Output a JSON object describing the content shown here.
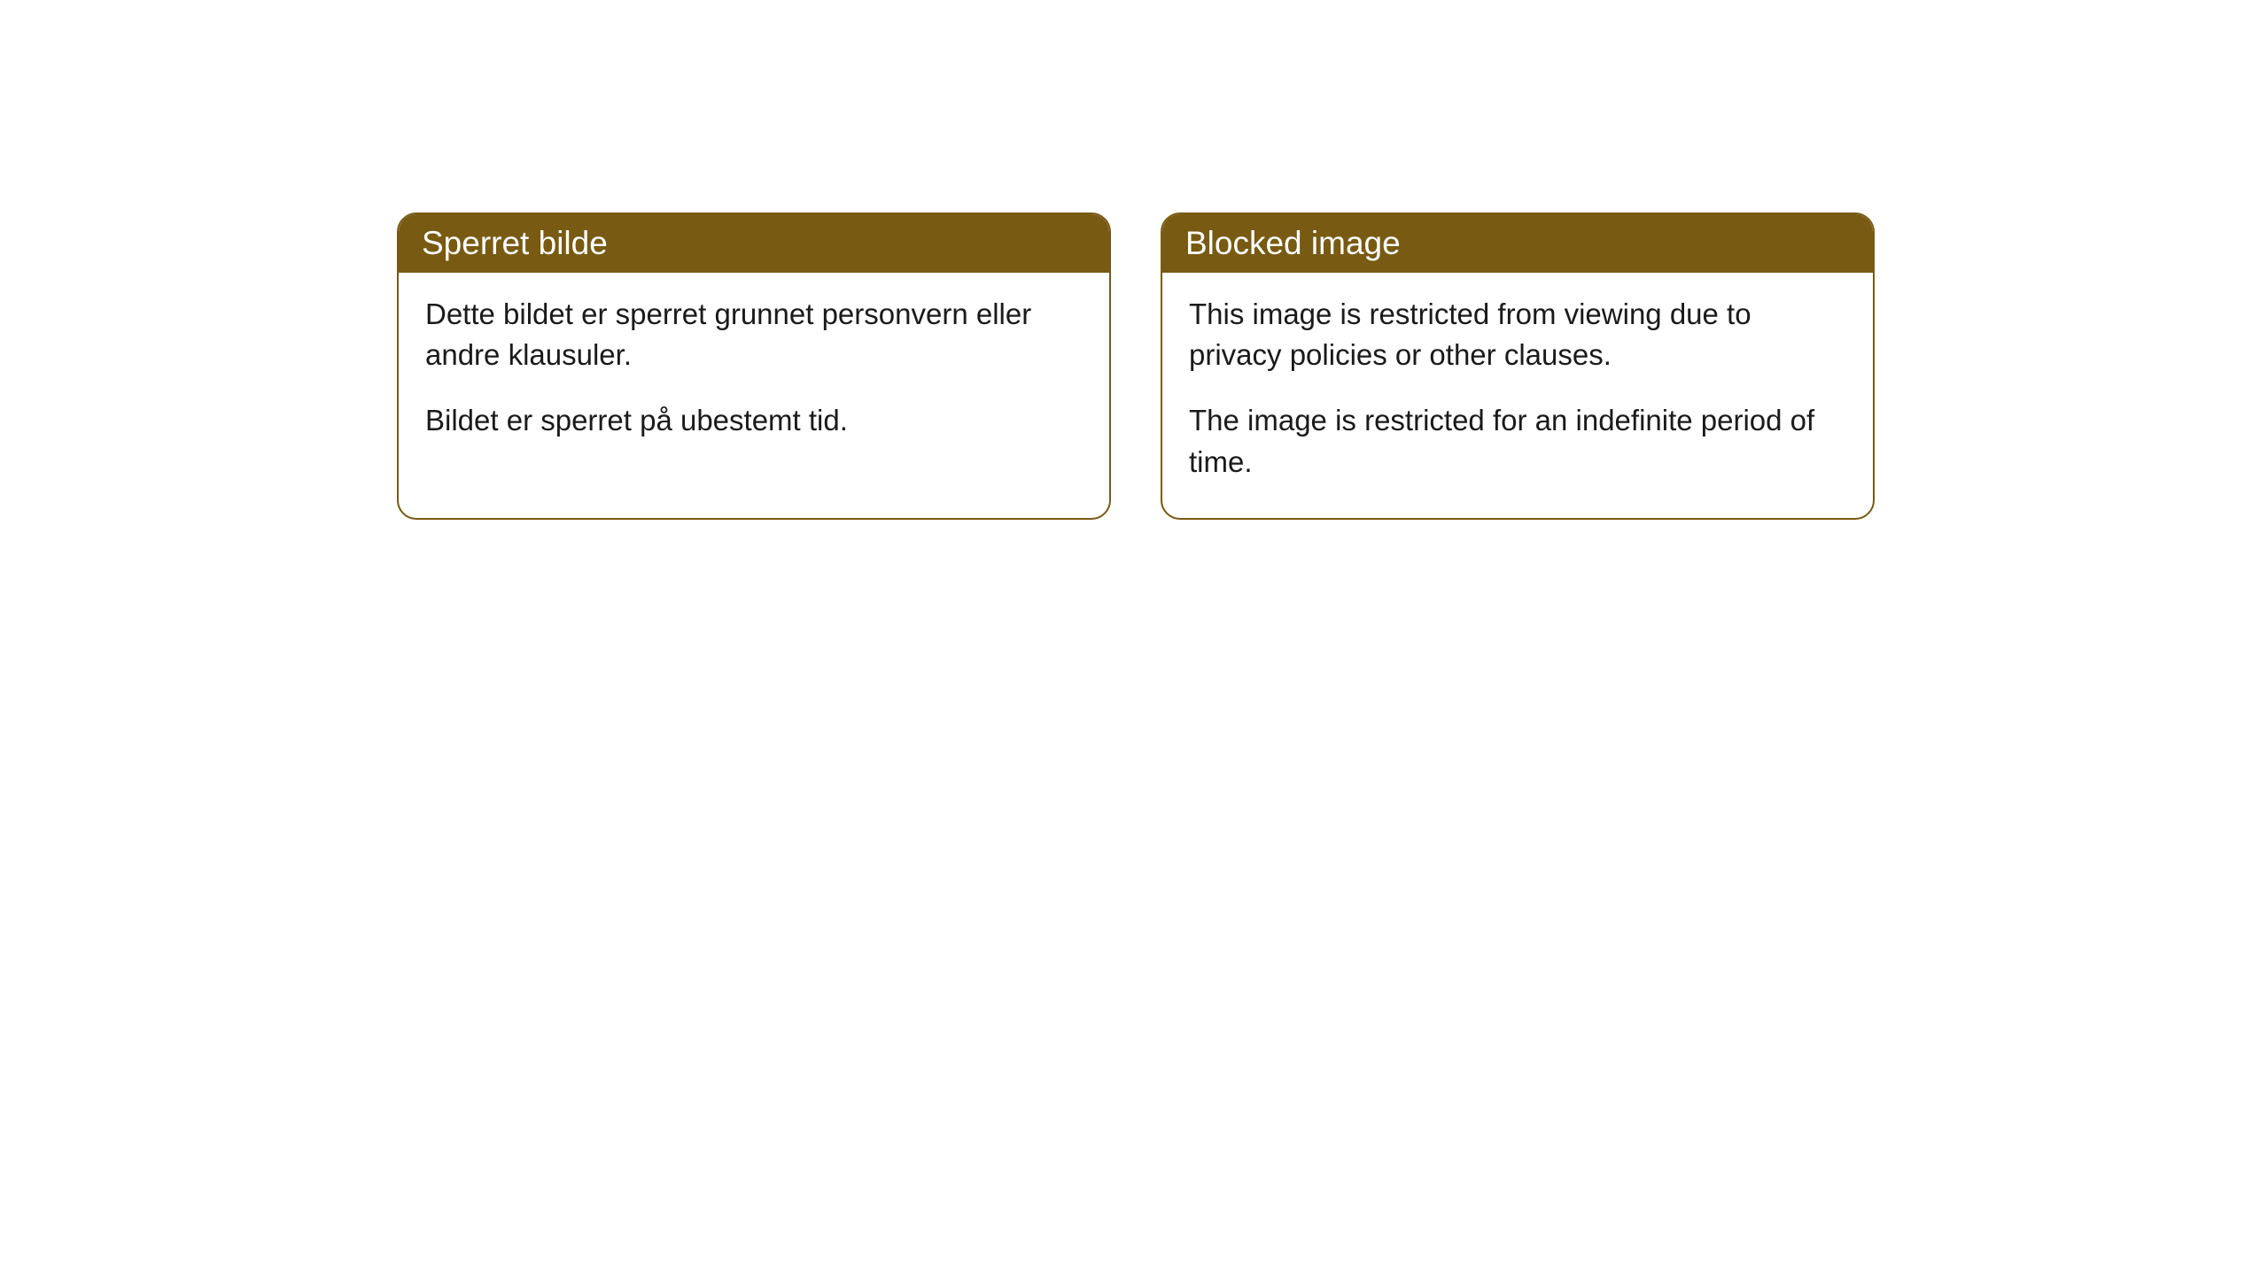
{
  "cards": [
    {
      "title": "Sperret bilde",
      "paragraph1": "Dette bildet er sperret grunnet personvern eller andre klausuler.",
      "paragraph2": "Bildet er sperret på ubestemt tid."
    },
    {
      "title": "Blocked image",
      "paragraph1": "This image is restricted from viewing due to privacy policies or other clauses.",
      "paragraph2": "The image is restricted for an indefinite period of time."
    }
  ],
  "styling": {
    "header_background_color": "#785a12",
    "header_text_color": "#ffffff",
    "border_color": "#785a12",
    "body_background_color": "#ffffff",
    "body_text_color": "#1a1a1a",
    "border_radius": 22,
    "header_fontsize": 37,
    "body_fontsize": 33
  }
}
